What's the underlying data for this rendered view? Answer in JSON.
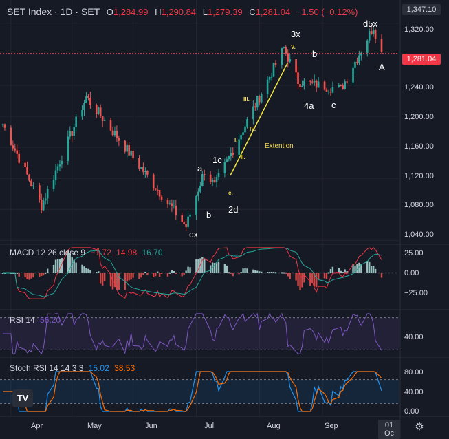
{
  "header": {
    "title": "SET Index · 1D · SET",
    "o_label": "O",
    "o_value": "1,284.99",
    "h_label": "H",
    "h_value": "1,290.84",
    "l_label": "L",
    "l_value": "1,279.39",
    "c_label": "C",
    "c_value": "1,281.04",
    "change": "−1.50 (−0.12%)"
  },
  "price_axis": {
    "ticks": [
      "1,320.00",
      "1,280.00",
      "1,240.00",
      "1,200.00",
      "1,160.00",
      "1,120.00",
      "1,080.00",
      "1,040.00"
    ],
    "tick_values": [
      1320,
      1280,
      1240,
      1200,
      1160,
      1120,
      1080,
      1040
    ],
    "high_tag": "1,347.10",
    "last_tag": "1,281.04"
  },
  "macd": {
    "label": "MACD 12 26 close 9",
    "v1": "−1.72",
    "v2": "14.98",
    "v3": "16.70",
    "ticks": [
      "25.00",
      "0.00",
      "−25.00"
    ]
  },
  "rsi": {
    "label": "RSI 14",
    "value": "56.20",
    "ticks": [
      "40.00"
    ]
  },
  "stoch": {
    "label": "Stoch RSI 14 14 3 3",
    "k": "15.02",
    "d": "38.53",
    "ticks": [
      "80.00",
      "40.00",
      "0.00"
    ]
  },
  "time_axis": [
    "Apr",
    "May",
    "Jun",
    "Jul",
    "Aug",
    "Sep"
  ],
  "time_tag": "01 Oc",
  "waves": {
    "w3x": "3x",
    "wd5x": "d5x",
    "wb1": "b",
    "wA": "A",
    "w4a": "4a",
    "wc1": "c",
    "wa": "a",
    "w1c": "1c",
    "wb2": "b",
    "w2d": "2d",
    "wcx": "cx",
    "iii": "III.",
    "iv": "IV.",
    "i": "I.",
    "ii": "II.",
    "c": "c.",
    "v": "V.",
    "ext": "Extention"
  },
  "logo": "TV",
  "colors": {
    "up": "#26a69a",
    "down": "#ef5350",
    "bg": "#161a25",
    "wave_line": "#f2e53a"
  },
  "chart_data": {
    "type": "candlestick",
    "symbol": "SET Index",
    "interval": "1D",
    "price_range": [
      1035,
      1350
    ],
    "key_points": [
      {
        "date": "2024-03-28",
        "price": 1190
      },
      {
        "date": "2024-04-16",
        "price": 1085
      },
      {
        "date": "2024-05-08",
        "price": 1225
      },
      {
        "date": "2024-06-26",
        "price": 1058
      },
      {
        "date": "2024-07-05",
        "price": 1130
      },
      {
        "date": "2024-07-10",
        "price": 1110
      },
      {
        "date": "2024-08-13",
        "price": 1288
      },
      {
        "date": "2024-08-20",
        "price": 1245
      },
      {
        "date": "2024-09-10",
        "price": 1235
      },
      {
        "date": "2024-09-26",
        "price": 1316
      },
      {
        "date": "2024-09-30",
        "price": 1281
      }
    ],
    "macd": {
      "macd": 14.98,
      "signal": 16.7,
      "hist": -1.72
    },
    "rsi": 56.2,
    "stoch_rsi": {
      "k": 15.02,
      "d": 38.53
    }
  }
}
